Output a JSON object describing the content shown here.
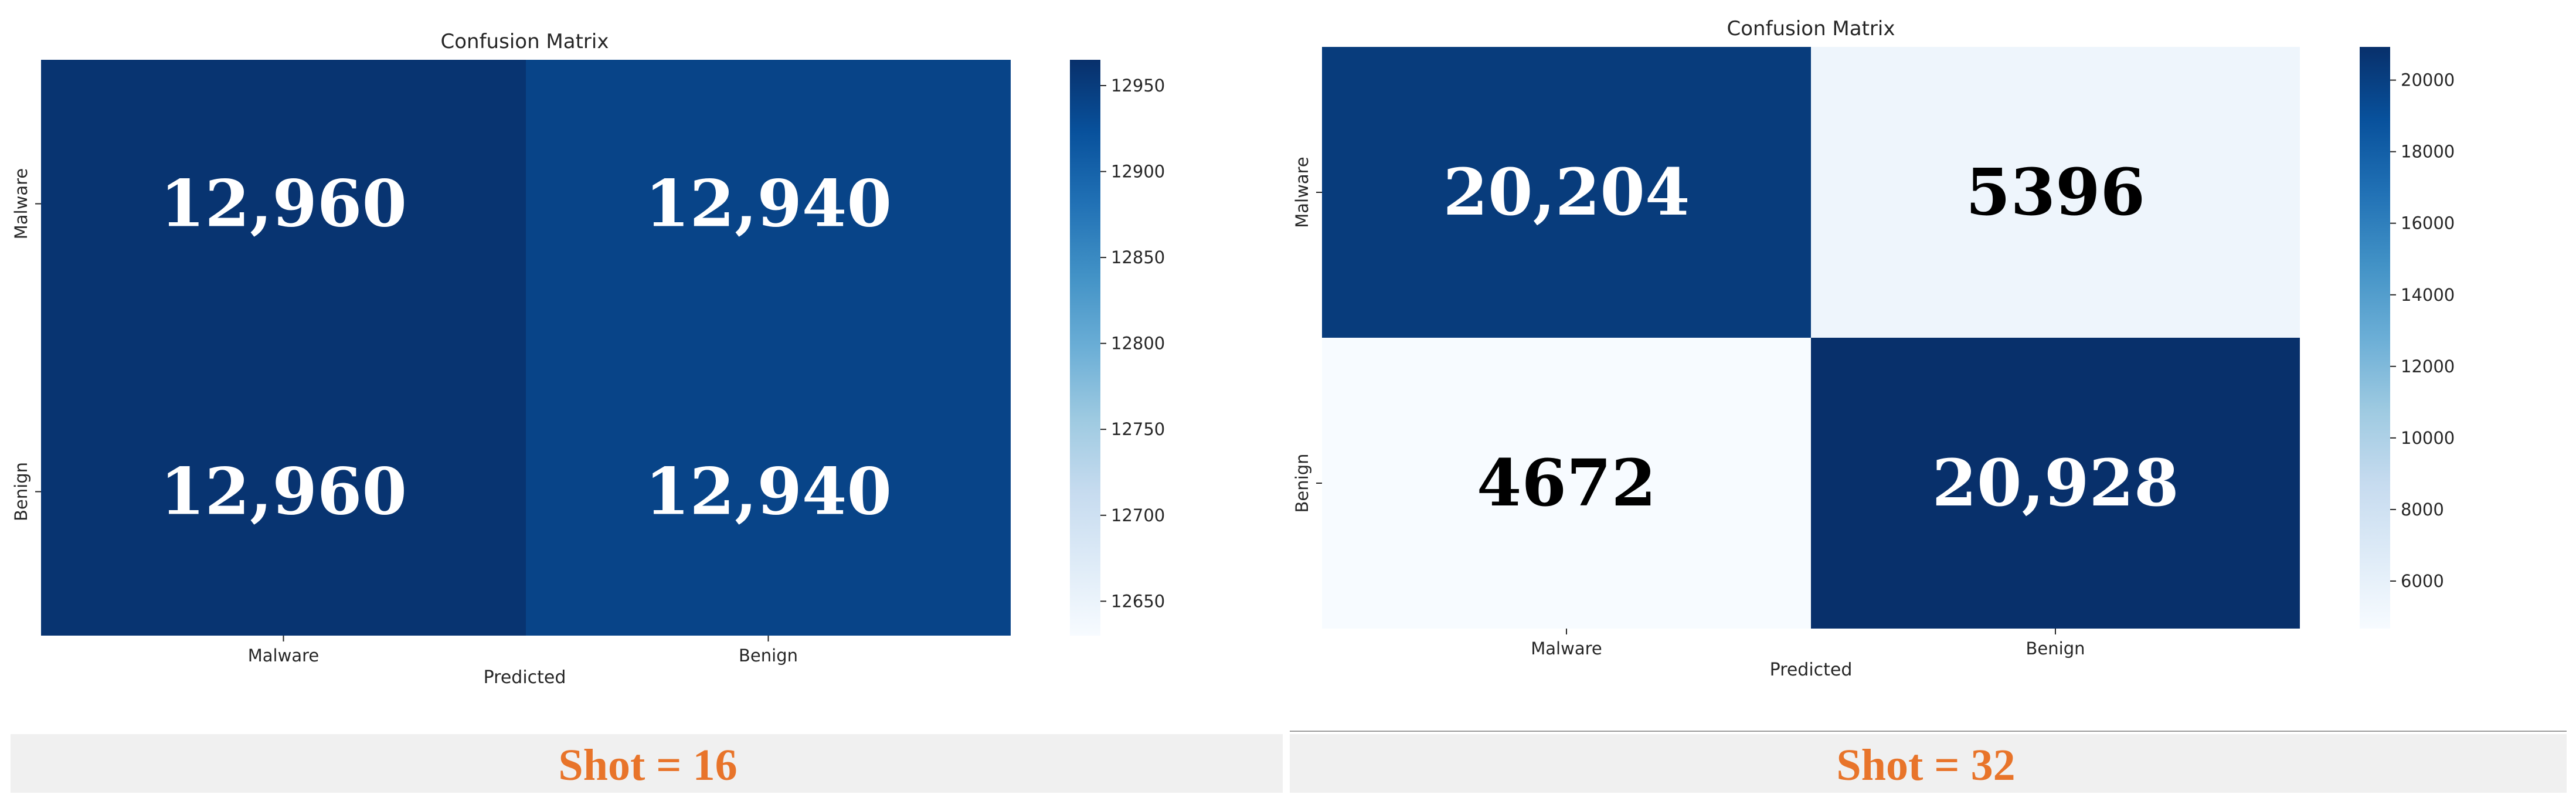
{
  "chart_data": [
    {
      "type": "heatmap",
      "title": "Confusion Matrix",
      "xlabel": "Predicted",
      "ylabel": "",
      "x_categories": [
        "Malware",
        "Benign"
      ],
      "y_categories": [
        "Malware",
        "Benign"
      ],
      "values": [
        [
          12960,
          12940
        ],
        [
          12960,
          12940
        ]
      ],
      "value_labels": [
        [
          "12,960",
          "12,940"
        ],
        [
          "12,960",
          "12,940"
        ]
      ],
      "colorbar": {
        "ticks": [
          12650,
          12700,
          12750,
          12800,
          12850,
          12900,
          12950
        ],
        "range": [
          12630,
          12965
        ]
      },
      "colormap": "Blues",
      "caption": "Shot = 16"
    },
    {
      "type": "heatmap",
      "title": "Confusion Matrix",
      "xlabel": "Predicted",
      "ylabel": "",
      "x_categories": [
        "Malware",
        "Benign"
      ],
      "y_categories": [
        "Malware",
        "Benign"
      ],
      "values": [
        [
          20204,
          5396
        ],
        [
          4672,
          20928
        ]
      ],
      "value_labels": [
        [
          "20,204",
          "5396"
        ],
        [
          "4672",
          "20,928"
        ]
      ],
      "colorbar": {
        "ticks": [
          6000,
          8000,
          10000,
          12000,
          14000,
          16000,
          18000,
          20000
        ],
        "range": [
          4672,
          20928
        ]
      },
      "colormap": "Blues",
      "caption": "Shot = 32"
    }
  ],
  "colors": {
    "dark_blue": "#08306b",
    "light_blue": "#f7fbff",
    "caption_text": "#e8742a",
    "caption_band": "#f0f0f0",
    "axis_text": "#262626"
  }
}
